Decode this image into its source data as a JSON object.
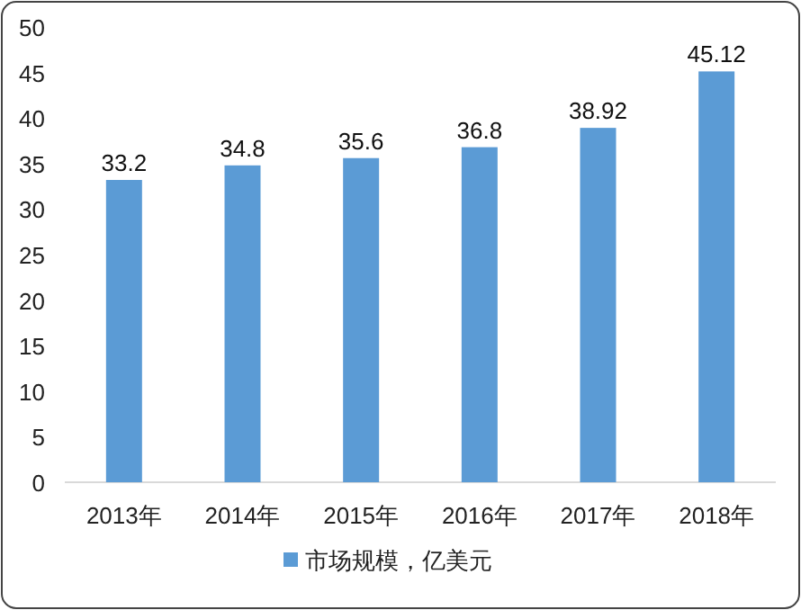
{
  "chart_data": {
    "type": "bar",
    "categories": [
      "2013年",
      "2014年",
      "2015年",
      "2016年",
      "2017年",
      "2018年"
    ],
    "series": [
      {
        "name": "市场规模，亿美元",
        "color": "#5b9bd5",
        "values": [
          33.2,
          34.8,
          35.6,
          36.8,
          38.92,
          45.12
        ]
      }
    ],
    "ylim": [
      0,
      50
    ],
    "yticks": [
      0,
      5,
      10,
      15,
      20,
      25,
      30,
      35,
      40,
      45,
      50
    ],
    "grid": false,
    "legend": "bottom",
    "data_labels": true
  }
}
